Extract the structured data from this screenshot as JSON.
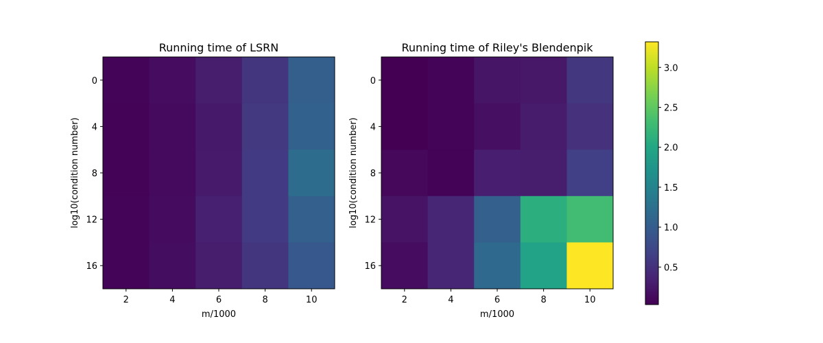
{
  "chart_data": [
    {
      "type": "heatmap",
      "title": "Running time of LSRN",
      "xlabel": "m/1000",
      "ylabel": "log10(condition number)",
      "x_categories": [
        "2",
        "4",
        "6",
        "8",
        "10"
      ],
      "y_categories": [
        "0",
        "4",
        "8",
        "12",
        "16"
      ],
      "values": [
        [
          0.06,
          0.14,
          0.3,
          0.55,
          1.03
        ],
        [
          0.05,
          0.12,
          0.26,
          0.59,
          1.05
        ],
        [
          0.05,
          0.12,
          0.27,
          0.6,
          1.19
        ],
        [
          0.07,
          0.13,
          0.33,
          0.6,
          1.04
        ],
        [
          0.06,
          0.15,
          0.3,
          0.55,
          0.94
        ]
      ],
      "colormap": "viridis",
      "vmin": 0.03,
      "vmax": 3.32
    },
    {
      "type": "heatmap",
      "title": "Running time of Riley's Blendenpik",
      "xlabel": "m/1000",
      "ylabel": "log10(condition number)",
      "x_categories": [
        "2",
        "4",
        "6",
        "8",
        "10"
      ],
      "y_categories": [
        "0",
        "4",
        "8",
        "12",
        "16"
      ],
      "values": [
        [
          0.03,
          0.07,
          0.22,
          0.24,
          0.56
        ],
        [
          0.03,
          0.06,
          0.17,
          0.29,
          0.5
        ],
        [
          0.1,
          0.05,
          0.32,
          0.3,
          0.65
        ],
        [
          0.2,
          0.39,
          1.04,
          2.11,
          2.3
        ],
        [
          0.14,
          0.39,
          1.16,
          1.93,
          3.32
        ]
      ],
      "colormap": "viridis",
      "vmin": 0.03,
      "vmax": 3.32
    }
  ],
  "colorbar": {
    "ticks": [
      0.5,
      1.0,
      1.5,
      2.0,
      2.5,
      3.0
    ],
    "tick_labels": [
      "0.5",
      "1.0",
      "1.5",
      "2.0",
      "2.5",
      "3.0"
    ],
    "min": 0.03,
    "max": 3.32
  }
}
